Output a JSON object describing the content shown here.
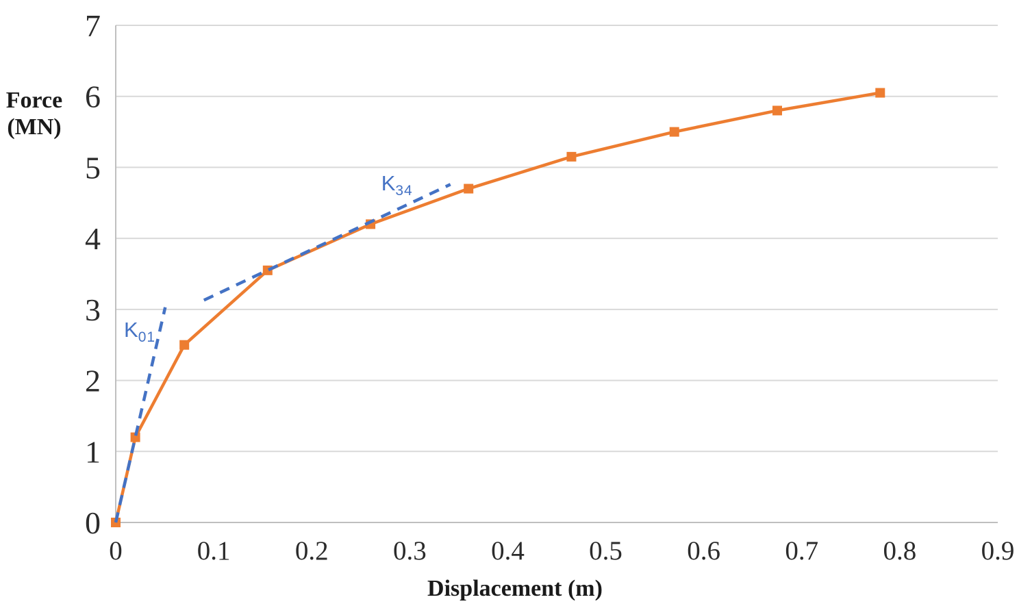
{
  "chart_data": {
    "type": "line",
    "title": "",
    "xlabel": "Displacement (m)",
    "ylabel_lines": [
      "Force",
      "(MN)"
    ],
    "xlim": [
      0,
      0.9
    ],
    "ylim": [
      0,
      7
    ],
    "x_ticks": [
      0,
      0.1,
      0.2,
      0.3,
      0.4,
      0.5,
      0.6,
      0.7,
      0.8,
      0.9
    ],
    "x_tick_labels": [
      "0",
      "0.1",
      "0.2",
      "0.3",
      "0.4",
      "0.5",
      "0.6",
      "0.7",
      "0.8",
      "0.9"
    ],
    "y_ticks": [
      0,
      1,
      2,
      3,
      4,
      5,
      6,
      7
    ],
    "y_tick_labels": [
      "0",
      "1",
      "2",
      "3",
      "4",
      "5",
      "6",
      "7"
    ],
    "grid": "horizontal",
    "legend": "none",
    "series": [
      {
        "name": "force-displacement-curve",
        "color": "#ED7D31",
        "marker": "square",
        "line_style": "solid",
        "x": [
          0,
          0.02,
          0.07,
          0.155,
          0.26,
          0.36,
          0.465,
          0.57,
          0.675,
          0.78
        ],
        "y": [
          0,
          1.2,
          2.5,
          3.55,
          4.2,
          4.7,
          5.15,
          5.5,
          5.8,
          6.05
        ]
      }
    ],
    "annotations": [
      {
        "id": "k01",
        "label_main": "K",
        "label_sub": "01",
        "color": "#4472C4",
        "line_style": "dashed",
        "x1": 0,
        "y1": 0,
        "x2": 0.0505,
        "y2": 3.03,
        "label_x": 0.0245,
        "label_y": 2.71
      },
      {
        "id": "k34",
        "label_main": "K",
        "label_sub": "34",
        "color": "#4472C4",
        "line_style": "dashed",
        "x1": 0.09,
        "y1": 3.13,
        "x2": 0.3415,
        "y2": 4.76,
        "label_x": 0.287,
        "label_y": 4.77
      }
    ],
    "colors": {
      "series_orange": "#ED7D31",
      "annotation_blue": "#4472C4",
      "gridline": "#D9D9D9",
      "axis_line": "#BFBFBF",
      "tick_text": "#2b2b2b"
    }
  }
}
